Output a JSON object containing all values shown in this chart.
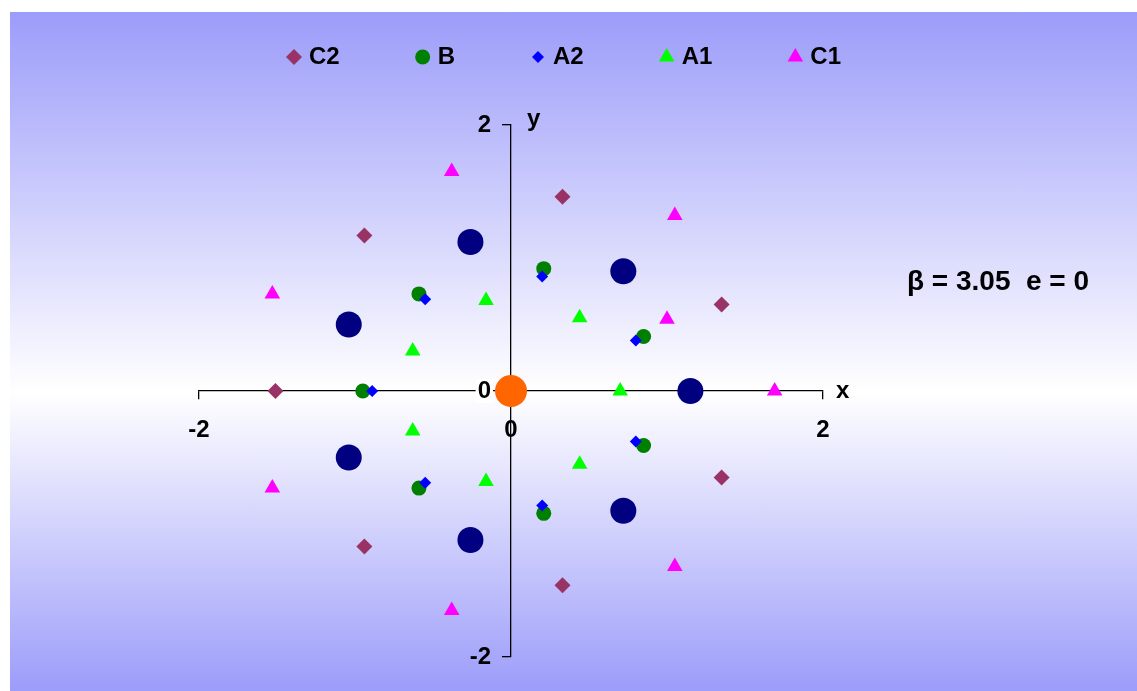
{
  "chart_data": {
    "type": "scatter",
    "xlabel": "x",
    "ylabel": "y",
    "annotations": [
      "β = 3.05  e = 0"
    ],
    "xlim": [
      -2,
      2
    ],
    "ylim": [
      -2,
      2
    ],
    "xticks": [
      -2,
      0,
      2
    ],
    "yticks": [
      -2,
      0,
      2
    ],
    "legend": "top",
    "series": [
      {
        "name": "C2",
        "color": "#993366",
        "marker": "diamond",
        "x": [
          -1.51,
          -0.94,
          0.33,
          1.35,
          1.35,
          0.33,
          -0.94
        ],
        "values": [
          0,
          1.17,
          1.46,
          0.65,
          -0.65,
          -1.46,
          -1.17
        ]
      },
      {
        "name": "B",
        "color": "#008000",
        "marker": "circle",
        "x": [
          -0.95,
          -0.59,
          0.21,
          0.85,
          0.85,
          0.21,
          -0.59
        ],
        "values": [
          0,
          0.73,
          0.92,
          0.41,
          -0.41,
          -0.92,
          -0.73
        ]
      },
      {
        "name": "A2",
        "color": "#0000ff",
        "marker": "diamond",
        "x": [
          -0.89,
          -0.55,
          0.2,
          0.8,
          0.8,
          0.2,
          -0.55
        ],
        "values": [
          0,
          0.69,
          0.86,
          0.38,
          -0.38,
          -0.86,
          -0.69
        ]
      },
      {
        "name": "A1",
        "color": "#00ff00",
        "marker": "triangle",
        "x": [
          0.7,
          0.44,
          -0.16,
          -0.63,
          -0.63,
          -0.16,
          0.44
        ],
        "values": [
          0,
          0.55,
          0.68,
          0.3,
          -0.3,
          -0.68,
          -0.55
        ]
      },
      {
        "name": "C1",
        "color": "#ff00ff",
        "marker": "triangle",
        "x": [
          1.69,
          1.05,
          -0.38,
          -1.53,
          -1.53,
          -0.38,
          1.05,
          1.0
        ],
        "values": [
          0,
          1.32,
          1.65,
          0.73,
          -0.73,
          -1.65,
          -1.32,
          0.54
        ]
      },
      {
        "color": "#000080",
        "marker": "circle",
        "x": [
          1.15,
          0.72,
          -0.26,
          -1.04,
          -1.04,
          -0.26,
          0.72
        ],
        "values": [
          0,
          0.9,
          1.12,
          0.5,
          -0.5,
          -1.12,
          -0.9
        ]
      },
      {
        "color": "#ff6600",
        "marker": "circle",
        "x": [
          0
        ],
        "values": [
          0
        ]
      }
    ]
  }
}
